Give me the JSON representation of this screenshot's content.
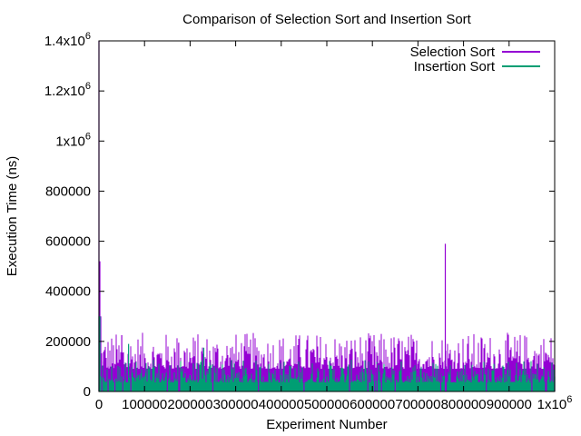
{
  "chart_data": {
    "type": "line",
    "title": "Comparison of Selection Sort and Insertion Sort",
    "xlabel": "Experiment Number",
    "ylabel": "Execution Time (ns)",
    "xlim": [
      0,
      1000000
    ],
    "ylim": [
      0,
      1400000
    ],
    "grid": false,
    "legend_position": "top-right",
    "x_ticks": [
      {
        "value": 0,
        "label": "0"
      },
      {
        "value": 100000,
        "label": "100000"
      },
      {
        "value": 200000,
        "label": "200000"
      },
      {
        "value": 300000,
        "label": "300000"
      },
      {
        "value": 400000,
        "label": "400000"
      },
      {
        "value": 500000,
        "label": "500000"
      },
      {
        "value": 600000,
        "label": "600000"
      },
      {
        "value": 700000,
        "label": "700000"
      },
      {
        "value": 800000,
        "label": "800000"
      },
      {
        "value": 900000,
        "label": "900000"
      },
      {
        "value": 1000000,
        "label": "1x10",
        "sup": "6"
      }
    ],
    "y_ticks": [
      {
        "value": 0,
        "label": "0"
      },
      {
        "value": 200000,
        "label": "200000"
      },
      {
        "value": 400000,
        "label": "400000"
      },
      {
        "value": 600000,
        "label": "600000"
      },
      {
        "value": 800000,
        "label": "800000"
      },
      {
        "value": 1000000,
        "label": "1x10",
        "sup": "6"
      },
      {
        "value": 1200000,
        "label": "1.2x10",
        "sup": "6"
      },
      {
        "value": 1400000,
        "label": "1.4x10",
        "sup": "6"
      }
    ],
    "series": [
      {
        "name": "Selection Sort",
        "color": "#9400d3",
        "x": [
          0,
          2000,
          4000,
          6000,
          10000,
          20000,
          35000,
          50000,
          52000,
          70000,
          100000,
          150000,
          175000,
          177000,
          200000,
          250000,
          300000,
          350000,
          400000,
          450000,
          500000,
          550000,
          590000,
          605000,
          610000,
          620000,
          650000,
          700000,
          750000,
          760000,
          761000,
          762000,
          800000,
          850000,
          900000,
          950000,
          980000,
          982000,
          1000000
        ],
        "y": [
          1400000,
          520000,
          300000,
          90000,
          120000,
          100000,
          110000,
          225000,
          95000,
          120000,
          100000,
          105000,
          195000,
          90000,
          110000,
          100000,
          120000,
          105000,
          115000,
          100000,
          110000,
          120000,
          160000,
          180000,
          110000,
          120000,
          100000,
          110000,
          105000,
          590000,
          110000,
          100000,
          115000,
          105000,
          110000,
          100000,
          155000,
          90000,
          105000
        ]
      },
      {
        "name": "Insertion Sort",
        "color": "#009e73",
        "x": [
          0,
          2000,
          4000,
          10000,
          50000,
          65000,
          67000,
          100000,
          200000,
          230000,
          232000,
          300000,
          400000,
          500000,
          600000,
          700000,
          800000,
          900000,
          1000000
        ],
        "y": [
          300000,
          300000,
          60000,
          55000,
          60000,
          190000,
          55000,
          60000,
          65000,
          175000,
          60000,
          55000,
          65000,
          60000,
          70000,
          60000,
          65000,
          60000,
          60000
        ]
      }
    ]
  }
}
